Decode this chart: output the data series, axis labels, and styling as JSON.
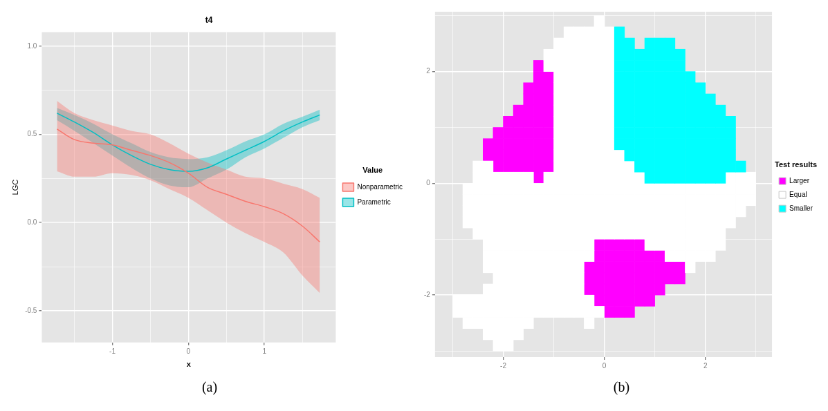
{
  "chart_data": [
    {
      "type": "line",
      "title": "t4",
      "xlabel": "x",
      "ylabel": "LGC",
      "legend_title": "Value",
      "legend": "right",
      "grid": true,
      "xlim": [
        -1.93,
        1.94
      ],
      "ylim": [
        -0.68,
        1.08
      ],
      "xticks": [
        {
          "value": -1.5,
          "label": null
        },
        -1,
        {
          "value": -0.5,
          "label": null
        },
        0,
        {
          "value": 0.5,
          "label": null
        },
        1,
        {
          "value": 1.5,
          "label": null
        }
      ],
      "yticks": [
        {
          "value": -0.5,
          "label": "-0.5"
        },
        {
          "value": -0.25,
          "label": null
        },
        {
          "value": 0,
          "label": "0.0"
        },
        {
          "value": 0.25,
          "label": null
        },
        {
          "value": 0.5,
          "label": "0.5"
        },
        {
          "value": 0.75,
          "label": null
        },
        {
          "value": 1,
          "label": "1.0"
        }
      ],
      "x": [
        -1.73,
        -1.5,
        -1.25,
        -1,
        -0.75,
        -0.5,
        -0.25,
        0,
        0.25,
        0.5,
        0.75,
        1,
        1.25,
        1.5,
        1.73
      ],
      "series": [
        {
          "name": "Nonparametric",
          "color": "#f8766d",
          "values": [
            0.53,
            0.47,
            0.45,
            0.44,
            0.41,
            0.38,
            0.34,
            0.28,
            0.2,
            0.16,
            0.12,
            0.09,
            0.05,
            -0.02,
            -0.11
          ],
          "lower": [
            0.29,
            0.26,
            0.26,
            0.28,
            0.27,
            0.24,
            0.19,
            0.14,
            0.07,
            0.0,
            -0.06,
            -0.11,
            -0.17,
            -0.3,
            -0.4
          ],
          "upper": [
            0.69,
            0.62,
            0.58,
            0.55,
            0.52,
            0.5,
            0.45,
            0.39,
            0.34,
            0.3,
            0.26,
            0.25,
            0.22,
            0.19,
            0.14
          ]
        },
        {
          "name": "Parametric",
          "color": "#00bfc4",
          "values": [
            0.62,
            0.57,
            0.51,
            0.44,
            0.38,
            0.33,
            0.3,
            0.29,
            0.31,
            0.36,
            0.41,
            0.46,
            0.52,
            0.57,
            0.61
          ],
          "lower": [
            0.58,
            0.52,
            0.45,
            0.38,
            0.31,
            0.25,
            0.21,
            0.2,
            0.25,
            0.3,
            0.37,
            0.42,
            0.48,
            0.54,
            0.58
          ],
          "upper": [
            0.65,
            0.61,
            0.56,
            0.5,
            0.45,
            0.4,
            0.37,
            0.36,
            0.37,
            0.41,
            0.46,
            0.5,
            0.56,
            0.6,
            0.64
          ]
        }
      ],
      "annotations": [
        "(a)"
      ]
    },
    {
      "type": "scatter",
      "marker": "square",
      "legend_title": "Test results",
      "legend": "right",
      "grid": true,
      "xlim": [
        -3.35,
        3.32
      ],
      "ylim": [
        -3.11,
        3.07
      ],
      "xticks": [
        {
          "value": -3,
          "label": null
        },
        -2,
        {
          "value": -1,
          "label": null
        },
        0,
        {
          "value": 1,
          "label": null
        },
        2,
        {
          "value": 3,
          "label": null
        }
      ],
      "yticks": [
        {
          "value": -3,
          "label": null
        },
        -2,
        {
          "value": -1,
          "label": null
        },
        0,
        {
          "value": 1,
          "label": null
        },
        2,
        {
          "value": 3,
          "label": null
        }
      ],
      "series": [
        {
          "name": "Larger",
          "color": "#ff00ff",
          "x": [
            -1.3,
            -1.3,
            -1.1,
            -1.5,
            -1.3,
            -1.1,
            -1.5,
            -1.3,
            -1.1,
            -1.7,
            -1.5,
            -1.3,
            -1.1,
            -1.9,
            -1.7,
            -1.5,
            -1.3,
            -1.1,
            -2.1,
            -1.9,
            -1.7,
            -1.5,
            -1.3,
            -1.1,
            -2.3,
            -2.1,
            -1.9,
            -1.7,
            -1.5,
            -1.3,
            -1.1,
            -2.3,
            -2.1,
            -1.9,
            -1.7,
            -1.5,
            -1.3,
            -1.1,
            -2.1,
            -1.9,
            -1.7,
            -1.5,
            -1.3,
            -1.1,
            -1.3,
            -0.1,
            0.1,
            0.3,
            0.5,
            0.7,
            -0.1,
            0.1,
            0.3,
            0.5,
            0.7,
            0.9,
            1.1,
            -0.3,
            -0.1,
            0.1,
            0.3,
            0.5,
            0.7,
            0.9,
            1.1,
            1.3,
            1.5,
            -0.3,
            -0.1,
            0.1,
            0.3,
            0.5,
            0.7,
            0.9,
            1.1,
            1.3,
            1.5,
            -0.3,
            -0.1,
            0.1,
            0.3,
            0.5,
            0.7,
            0.9,
            1.1,
            -0.1,
            0.1,
            0.3,
            0.5,
            0.7,
            0.9,
            0.1,
            0.3,
            0.5
          ],
          "values": [
            2.1,
            1.9,
            1.9,
            1.7,
            1.7,
            1.7,
            1.5,
            1.5,
            1.5,
            1.3,
            1.3,
            1.3,
            1.3,
            1.1,
            1.1,
            1.1,
            1.1,
            1.1,
            0.9,
            0.9,
            0.9,
            0.9,
            0.9,
            0.9,
            0.7,
            0.7,
            0.7,
            0.7,
            0.7,
            0.7,
            0.7,
            0.5,
            0.5,
            0.5,
            0.5,
            0.5,
            0.5,
            0.5,
            0.3,
            0.3,
            0.3,
            0.3,
            0.3,
            0.3,
            0.1,
            -1.1,
            -1.1,
            -1.1,
            -1.1,
            -1.1,
            -1.3,
            -1.3,
            -1.3,
            -1.3,
            -1.3,
            -1.3,
            -1.3,
            -1.5,
            -1.5,
            -1.5,
            -1.5,
            -1.5,
            -1.5,
            -1.5,
            -1.5,
            -1.5,
            -1.5,
            -1.7,
            -1.7,
            -1.7,
            -1.7,
            -1.7,
            -1.7,
            -1.7,
            -1.7,
            -1.7,
            -1.7,
            -1.9,
            -1.9,
            -1.9,
            -1.9,
            -1.9,
            -1.9,
            -1.9,
            -1.9,
            -2.1,
            -2.1,
            -2.1,
            -2.1,
            -2.1,
            -2.1,
            -2.3,
            -2.3,
            -2.3
          ]
        },
        {
          "name": "Equal",
          "color": "#ffffff",
          "x": [
            -0.1,
            -0.7,
            -0.5,
            -0.3,
            -0.1,
            0.1,
            -0.9,
            -0.7,
            -0.5,
            -0.3,
            -0.1,
            0.1,
            -1.1,
            -0.9,
            -0.7,
            -0.5,
            -0.3,
            -0.1,
            0.1,
            -1.1,
            -0.9,
            -0.7,
            -0.5,
            -0.3,
            -0.1,
            0.1,
            -0.9,
            -0.7,
            -0.5,
            -0.3,
            -0.1,
            0.1,
            -0.9,
            -0.7,
            -0.5,
            -0.3,
            -0.1,
            0.1,
            -0.9,
            -0.7,
            -0.5,
            -0.3,
            -0.1,
            0.1,
            -0.9,
            -0.7,
            -0.5,
            -0.3,
            -0.1,
            0.1,
            -0.9,
            -0.7,
            -0.5,
            -0.3,
            -0.1,
            0.1,
            -0.9,
            -0.7,
            -0.5,
            -0.3,
            -0.1,
            0.1,
            -0.9,
            -0.7,
            -0.5,
            -0.3,
            -0.1,
            0.1,
            -0.9,
            -0.7,
            -0.5,
            -0.3,
            -0.1,
            0.1,
            0.3,
            -2.5,
            -2.3,
            -0.9,
            -0.7,
            -0.5,
            -0.3,
            -0.1,
            0.1,
            0.3,
            0.5,
            -2.5,
            -2.3,
            -2.1,
            -1.9,
            -1.7,
            -1.5,
            -1.1,
            -0.9,
            -0.7,
            -0.5,
            -0.3,
            -0.1,
            0.1,
            0.3,
            0.5,
            0.7,
            2.5,
            2.7,
            2.9,
            -2.7,
            -2.5,
            -2.3,
            -2.1,
            -1.9,
            -1.7,
            -1.5,
            -1.3,
            -1.1,
            -0.9,
            -0.7,
            -0.5,
            -0.3,
            -0.1,
            0.1,
            0.3,
            0.5,
            0.7,
            0.9,
            1.1,
            1.3,
            1.5,
            1.7,
            1.9,
            2.1,
            2.3,
            2.5,
            2.7,
            2.9,
            -2.7,
            -2.5,
            -2.3,
            -2.1,
            -1.9,
            -1.7,
            -1.5,
            -1.3,
            -1.1,
            -0.9,
            -0.7,
            -0.5,
            -0.3,
            -0.1,
            0.1,
            0.3,
            0.5,
            0.7,
            0.9,
            1.1,
            1.3,
            1.5,
            1.7,
            1.9,
            2.1,
            2.3,
            2.5,
            2.7,
            2.9,
            -2.7,
            -2.5,
            -2.3,
            -2.1,
            -1.9,
            -1.7,
            -1.5,
            -1.3,
            -1.1,
            -0.9,
            -0.7,
            -0.5,
            -0.3,
            -0.1,
            0.1,
            0.3,
            0.5,
            0.7,
            0.9,
            1.1,
            1.3,
            1.5,
            1.7,
            1.9,
            2.1,
            2.3,
            2.5,
            2.7,
            -2.7,
            -2.5,
            -2.3,
            -2.1,
            -1.9,
            -1.7,
            -1.5,
            -1.3,
            -1.1,
            -0.9,
            -0.7,
            -0.5,
            -0.3,
            -0.1,
            0.1,
            0.3,
            0.5,
            0.7,
            0.9,
            1.1,
            1.3,
            1.5,
            1.7,
            1.9,
            2.1,
            2.3,
            2.5,
            -2.5,
            -2.3,
            -2.1,
            -1.9,
            -1.7,
            -1.5,
            -1.3,
            -1.1,
            -0.9,
            -0.7,
            -0.5,
            -0.3,
            -0.1,
            0.1,
            0.3,
            0.5,
            0.7,
            0.9,
            1.1,
            1.3,
            1.5,
            1.7,
            1.9,
            2.1,
            2.3,
            -2.3,
            -2.1,
            -1.9,
            -1.7,
            -1.5,
            -1.3,
            -1.1,
            -0.9,
            -0.7,
            -0.5,
            -0.3,
            0.9,
            1.1,
            1.3,
            1.5,
            1.7,
            1.9,
            2.1,
            2.3,
            -2.3,
            -2.1,
            -1.9,
            -1.7,
            -1.5,
            -1.3,
            -1.1,
            -0.9,
            -0.7,
            -0.5,
            -0.3,
            1.3,
            1.5,
            1.7,
            1.9,
            2.1,
            -2.3,
            -2.1,
            -1.9,
            -1.7,
            -1.5,
            -1.3,
            -1.1,
            -0.9,
            -0.7,
            -0.5,
            1.7,
            -2.1,
            -1.9,
            -1.7,
            -1.5,
            -1.3,
            -1.1,
            -0.9,
            -0.7,
            -0.5,
            -2.3,
            -2.1,
            -1.9,
            -1.7,
            -1.5,
            -1.3,
            -1.1,
            -0.9,
            -0.7,
            -0.5,
            -2.9,
            -2.7,
            -2.5,
            -2.3,
            -2.1,
            -1.9,
            -1.7,
            -1.5,
            -1.3,
            -1.1,
            -0.9,
            -0.7,
            -0.5,
            -0.3,
            -2.9,
            -2.7,
            -2.5,
            -2.3,
            -2.1,
            -1.9,
            -1.7,
            -1.5,
            -1.3,
            -1.1,
            -0.9,
            -0.7,
            -0.5,
            -0.3,
            -0.1,
            -2.7,
            -2.5,
            -2.3,
            -2.1,
            -1.9,
            -1.7,
            -1.5,
            -0.3,
            -2.3,
            -2.1,
            -1.9,
            -1.7,
            -2.1,
            -1.9
          ],
          "values": [
            2.9,
            2.7,
            2.7,
            2.7,
            2.7,
            2.7,
            2.5,
            2.5,
            2.5,
            2.5,
            2.5,
            2.5,
            2.3,
            2.3,
            2.3,
            2.3,
            2.3,
            2.3,
            2.3,
            2.1,
            2.1,
            2.1,
            2.1,
            2.1,
            2.1,
            2.1,
            1.9,
            1.9,
            1.9,
            1.9,
            1.9,
            1.9,
            1.7,
            1.7,
            1.7,
            1.7,
            1.7,
            1.7,
            1.5,
            1.5,
            1.5,
            1.5,
            1.5,
            1.5,
            1.3,
            1.3,
            1.3,
            1.3,
            1.3,
            1.3,
            1.1,
            1.1,
            1.1,
            1.1,
            1.1,
            1.1,
            0.9,
            0.9,
            0.9,
            0.9,
            0.9,
            0.9,
            0.7,
            0.7,
            0.7,
            0.7,
            0.7,
            0.7,
            0.5,
            0.5,
            0.5,
            0.5,
            0.5,
            0.5,
            0.5,
            0.3,
            0.3,
            0.3,
            0.3,
            0.3,
            0.3,
            0.3,
            0.3,
            0.3,
            0.3,
            0.1,
            0.1,
            0.1,
            0.1,
            0.1,
            0.1,
            0.1,
            0.1,
            0.1,
            0.1,
            0.1,
            0.1,
            0.1,
            0.1,
            0.1,
            0.1,
            0.1,
            0.1,
            0.1,
            -0.1,
            -0.1,
            -0.1,
            -0.1,
            -0.1,
            -0.1,
            -0.1,
            -0.1,
            -0.1,
            -0.1,
            -0.1,
            -0.1,
            -0.1,
            -0.1,
            -0.1,
            -0.1,
            -0.1,
            -0.1,
            -0.1,
            -0.1,
            -0.1,
            -0.1,
            -0.1,
            -0.1,
            -0.1,
            -0.1,
            -0.1,
            -0.1,
            -0.1,
            -0.3,
            -0.3,
            -0.3,
            -0.3,
            -0.3,
            -0.3,
            -0.3,
            -0.3,
            -0.3,
            -0.3,
            -0.3,
            -0.3,
            -0.3,
            -0.3,
            -0.3,
            -0.3,
            -0.3,
            -0.3,
            -0.3,
            -0.3,
            -0.3,
            -0.3,
            -0.3,
            -0.3,
            -0.3,
            -0.3,
            -0.3,
            -0.3,
            -0.3,
            -0.5,
            -0.5,
            -0.5,
            -0.5,
            -0.5,
            -0.5,
            -0.5,
            -0.5,
            -0.5,
            -0.5,
            -0.5,
            -0.5,
            -0.5,
            -0.5,
            -0.5,
            -0.5,
            -0.5,
            -0.5,
            -0.5,
            -0.5,
            -0.5,
            -0.5,
            -0.5,
            -0.5,
            -0.5,
            -0.5,
            -0.5,
            -0.5,
            -0.7,
            -0.7,
            -0.7,
            -0.7,
            -0.7,
            -0.7,
            -0.7,
            -0.7,
            -0.7,
            -0.7,
            -0.7,
            -0.7,
            -0.7,
            -0.7,
            -0.7,
            -0.7,
            -0.7,
            -0.7,
            -0.7,
            -0.7,
            -0.7,
            -0.7,
            -0.7,
            -0.7,
            -0.7,
            -0.7,
            -0.7,
            -0.9,
            -0.9,
            -0.9,
            -0.9,
            -0.9,
            -0.9,
            -0.9,
            -0.9,
            -0.9,
            -0.9,
            -0.9,
            -0.9,
            -0.9,
            -0.9,
            -0.9,
            -0.9,
            -0.9,
            -0.9,
            -0.9,
            -0.9,
            -0.9,
            -0.9,
            -0.9,
            -0.9,
            -0.9,
            -1.1,
            -1.1,
            -1.1,
            -1.1,
            -1.1,
            -1.1,
            -1.1,
            -1.1,
            -1.1,
            -1.1,
            -1.1,
            -1.1,
            -1.1,
            -1.1,
            -1.1,
            -1.1,
            -1.1,
            -1.1,
            -1.1,
            -1.3,
            -1.3,
            -1.3,
            -1.3,
            -1.3,
            -1.3,
            -1.3,
            -1.3,
            -1.3,
            -1.3,
            -1.3,
            -1.3,
            -1.3,
            -1.3,
            -1.3,
            -1.3,
            -1.5,
            -1.5,
            -1.5,
            -1.5,
            -1.5,
            -1.5,
            -1.5,
            -1.5,
            -1.5,
            -1.5,
            -1.5,
            -1.7,
            -1.7,
            -1.7,
            -1.7,
            -1.7,
            -1.7,
            -1.7,
            -1.7,
            -1.7,
            -1.9,
            -1.9,
            -1.9,
            -1.9,
            -1.9,
            -1.9,
            -1.9,
            -1.9,
            -1.9,
            -1.9,
            -2.1,
            -2.1,
            -2.1,
            -2.1,
            -2.1,
            -2.1,
            -2.1,
            -2.1,
            -2.1,
            -2.1,
            -2.1,
            -2.1,
            -2.1,
            -2.1,
            -2.3,
            -2.3,
            -2.3,
            -2.3,
            -2.3,
            -2.3,
            -2.3,
            -2.3,
            -2.3,
            -2.3,
            -2.3,
            -2.3,
            -2.3,
            -2.3,
            -2.3,
            -2.5,
            -2.5,
            -2.5,
            -2.5,
            -2.5,
            -2.5,
            -2.5,
            -2.5,
            -2.7,
            -2.7,
            -2.7,
            -2.7,
            -2.9,
            -2.9
          ]
        },
        {
          "name": "Smaller",
          "color": "#00ffff",
          "x": [
            0.3,
            0.3,
            0.5,
            0.9,
            1.1,
            1.3,
            0.3,
            0.5,
            0.7,
            0.9,
            1.1,
            1.3,
            1.5,
            0.3,
            0.5,
            0.7,
            0.9,
            1.1,
            1.3,
            1.5,
            0.3,
            0.5,
            0.7,
            0.9,
            1.1,
            1.3,
            1.5,
            1.7,
            0.3,
            0.5,
            0.7,
            0.9,
            1.1,
            1.3,
            1.5,
            1.7,
            1.9,
            0.3,
            0.5,
            0.7,
            0.9,
            1.1,
            1.3,
            1.5,
            1.7,
            1.9,
            2.1,
            0.3,
            0.5,
            0.7,
            0.9,
            1.1,
            1.3,
            1.5,
            1.7,
            1.9,
            2.1,
            2.3,
            0.3,
            0.5,
            0.7,
            0.9,
            1.1,
            1.3,
            1.5,
            1.7,
            1.9,
            2.1,
            2.3,
            2.5,
            0.3,
            0.5,
            0.7,
            0.9,
            1.1,
            1.3,
            1.5,
            1.7,
            1.9,
            2.1,
            2.3,
            2.5,
            0.3,
            0.5,
            0.7,
            0.9,
            1.1,
            1.3,
            1.5,
            1.7,
            1.9,
            2.1,
            2.3,
            2.5,
            0.5,
            0.7,
            0.9,
            1.1,
            1.3,
            1.5,
            1.7,
            1.9,
            2.1,
            2.3,
            2.5,
            0.7,
            0.9,
            1.1,
            1.3,
            1.5,
            1.7,
            1.9,
            2.1,
            2.3,
            2.5,
            2.7,
            0.9,
            1.1,
            1.3,
            1.5,
            1.7,
            1.9,
            2.1,
            2.3
          ],
          "values": [
            2.7,
            2.5,
            2.5,
            2.5,
            2.5,
            2.5,
            2.3,
            2.3,
            2.3,
            2.3,
            2.3,
            2.3,
            2.3,
            2.1,
            2.1,
            2.1,
            2.1,
            2.1,
            2.1,
            2.1,
            1.9,
            1.9,
            1.9,
            1.9,
            1.9,
            1.9,
            1.9,
            1.9,
            1.7,
            1.7,
            1.7,
            1.7,
            1.7,
            1.7,
            1.7,
            1.7,
            1.7,
            1.5,
            1.5,
            1.5,
            1.5,
            1.5,
            1.5,
            1.5,
            1.5,
            1.5,
            1.5,
            1.3,
            1.3,
            1.3,
            1.3,
            1.3,
            1.3,
            1.3,
            1.3,
            1.3,
            1.3,
            1.3,
            1.1,
            1.1,
            1.1,
            1.1,
            1.1,
            1.1,
            1.1,
            1.1,
            1.1,
            1.1,
            1.1,
            1.1,
            0.9,
            0.9,
            0.9,
            0.9,
            0.9,
            0.9,
            0.9,
            0.9,
            0.9,
            0.9,
            0.9,
            0.9,
            0.7,
            0.7,
            0.7,
            0.7,
            0.7,
            0.7,
            0.7,
            0.7,
            0.7,
            0.7,
            0.7,
            0.7,
            0.5,
            0.5,
            0.5,
            0.5,
            0.5,
            0.5,
            0.5,
            0.5,
            0.5,
            0.5,
            0.5,
            0.3,
            0.3,
            0.3,
            0.3,
            0.3,
            0.3,
            0.3,
            0.3,
            0.3,
            0.3,
            0.3,
            0.1,
            0.1,
            0.1,
            0.1,
            0.1,
            0.1,
            0.1,
            0.1
          ]
        }
      ],
      "annotations": [
        "(b)"
      ]
    }
  ]
}
